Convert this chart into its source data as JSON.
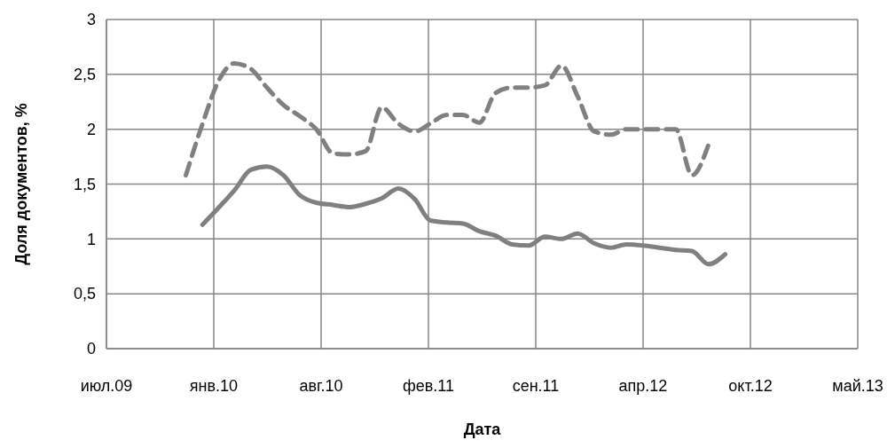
{
  "chart_data": {
    "type": "line",
    "xlabel": "Дата",
    "ylabel": "Доля документов, %",
    "xlim": [
      "2009-07-06",
      "2013-05-06"
    ],
    "xticks": [
      {
        "value": "2009-07-06",
        "label": "июл.09"
      },
      {
        "value": "2010-01-22",
        "label": "янв.10"
      },
      {
        "value": "2010-08-10",
        "label": "авг.10"
      },
      {
        "value": "2011-02-26",
        "label": "фев.11"
      },
      {
        "value": "2011-09-14",
        "label": "сен.11"
      },
      {
        "value": "2012-04-01",
        "label": "апр.12"
      },
      {
        "value": "2012-10-18",
        "label": "окт.12"
      },
      {
        "value": "2013-05-06",
        "label": "май.13"
      }
    ],
    "ylim": [
      0,
      3
    ],
    "yticks": [
      0,
      {
        "value": 0.5,
        "label": "0,5"
      },
      1,
      {
        "value": 1.5,
        "label": "1,5"
      },
      2,
      {
        "value": 2.5,
        "label": "2,5"
      },
      3
    ],
    "grid": true,
    "marker": "none",
    "series": [
      {
        "color": "#808080",
        "line_style": "dashed",
        "x": [
          "2009-12-01",
          "2010-01-01",
          "2010-02-01",
          "2010-03-01",
          "2010-04-01",
          "2010-05-01",
          "2010-06-01",
          "2010-07-01",
          "2010-08-01",
          "2010-09-01",
          "2010-10-01",
          "2010-11-01",
          "2010-12-01",
          "2011-01-01",
          "2011-02-01",
          "2011-03-01",
          "2011-04-01",
          "2011-05-01",
          "2011-06-01",
          "2011-07-01",
          "2011-08-01",
          "2011-09-01",
          "2011-10-01",
          "2011-11-01",
          "2011-12-01",
          "2012-01-01",
          "2012-02-01",
          "2012-03-01",
          "2012-04-01",
          "2012-05-01",
          "2012-06-01",
          "2012-07-01",
          "2012-08-01"
        ],
        "values": [
          1.58,
          2.05,
          2.45,
          2.6,
          2.55,
          2.38,
          2.22,
          2.12,
          2.0,
          1.78,
          1.77,
          1.8,
          2.2,
          2.05,
          1.98,
          2.05,
          2.13,
          2.13,
          2.06,
          2.33,
          2.38,
          2.38,
          2.4,
          2.58,
          2.3,
          1.98,
          1.95,
          2.0,
          2.0,
          2.0,
          2.0,
          1.58,
          1.86
        ]
      },
      {
        "color": "#808080",
        "line_style": "solid",
        "x": [
          "2010-01-01",
          "2010-02-01",
          "2010-03-01",
          "2010-04-01",
          "2010-05-01",
          "2010-06-01",
          "2010-07-01",
          "2010-08-01",
          "2010-09-01",
          "2010-10-01",
          "2010-11-01",
          "2010-12-01",
          "2011-01-01",
          "2011-02-01",
          "2011-03-01",
          "2011-04-01",
          "2011-05-01",
          "2011-06-01",
          "2011-07-01",
          "2011-08-01",
          "2011-09-01",
          "2011-10-01",
          "2011-11-01",
          "2011-12-01",
          "2012-01-01",
          "2012-02-01",
          "2012-03-01",
          "2012-04-01",
          "2012-05-01",
          "2012-06-01",
          "2012-07-01",
          "2012-08-01",
          "2012-09-01"
        ],
        "values": [
          1.13,
          1.29,
          1.44,
          1.63,
          1.66,
          1.58,
          1.4,
          1.33,
          1.31,
          1.29,
          1.32,
          1.37,
          1.46,
          1.36,
          1.17,
          1.15,
          1.14,
          1.07,
          1.03,
          0.95,
          0.94,
          1.02,
          1.0,
          1.05,
          0.96,
          0.92,
          0.95,
          0.94,
          0.92,
          0.9,
          0.89,
          0.77,
          0.86
        ]
      }
    ]
  }
}
